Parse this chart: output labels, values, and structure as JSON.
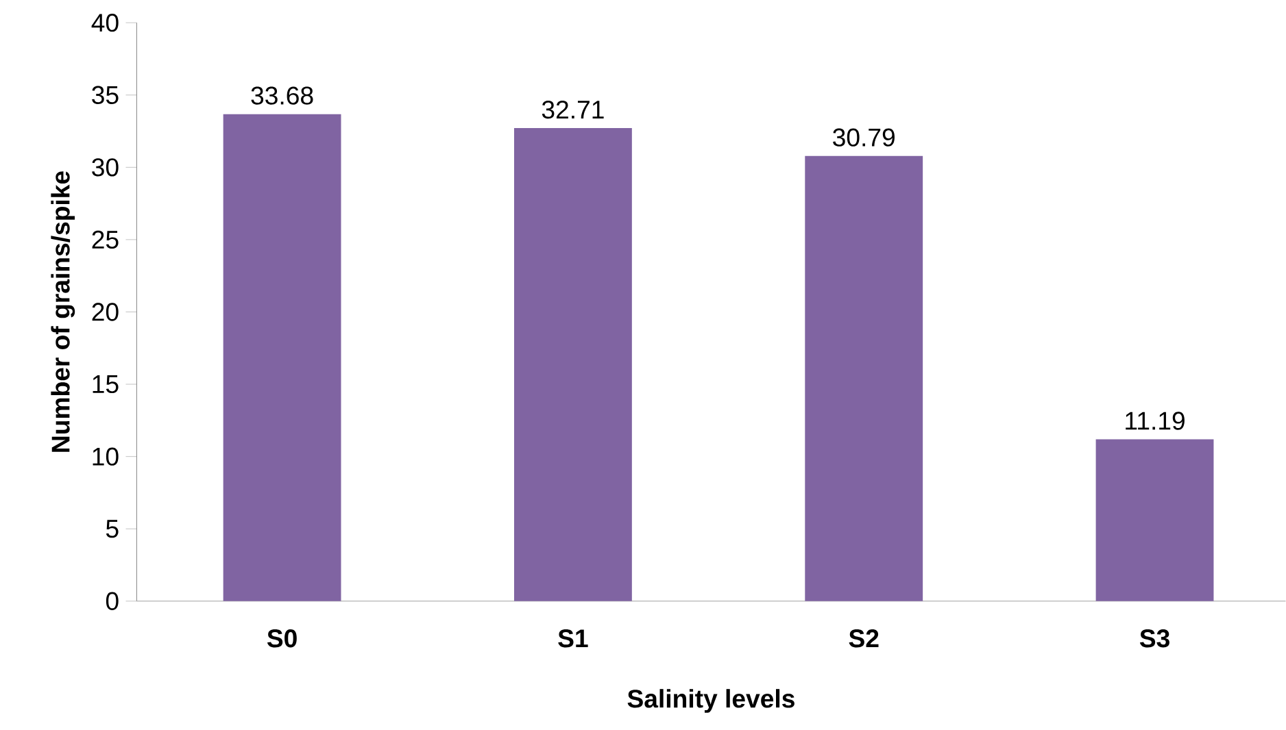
{
  "chart_data": {
    "type": "bar",
    "xlabel": "Salinity levels",
    "ylabel": "Number of grains/spike",
    "categories": [
      "S0",
      "S1",
      "S2",
      "S3"
    ],
    "values": [
      33.68,
      32.71,
      30.79,
      11.19
    ],
    "color": "#8064a2",
    "ylim": [
      0,
      40
    ],
    "yticks": [
      0,
      5,
      10,
      15,
      20,
      25,
      30,
      35,
      40
    ],
    "data_labels": true
  }
}
